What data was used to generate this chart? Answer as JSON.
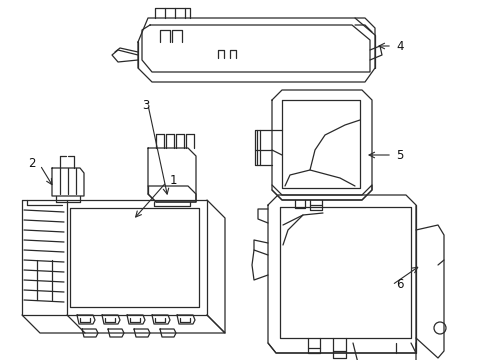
{
  "background_color": "#ffffff",
  "line_color": "#2a2a2a",
  "line_width": 0.9,
  "label_color": "#111111",
  "label_fontsize": 8.5,
  "fig_width": 4.89,
  "fig_height": 3.6,
  "dpi": 100
}
